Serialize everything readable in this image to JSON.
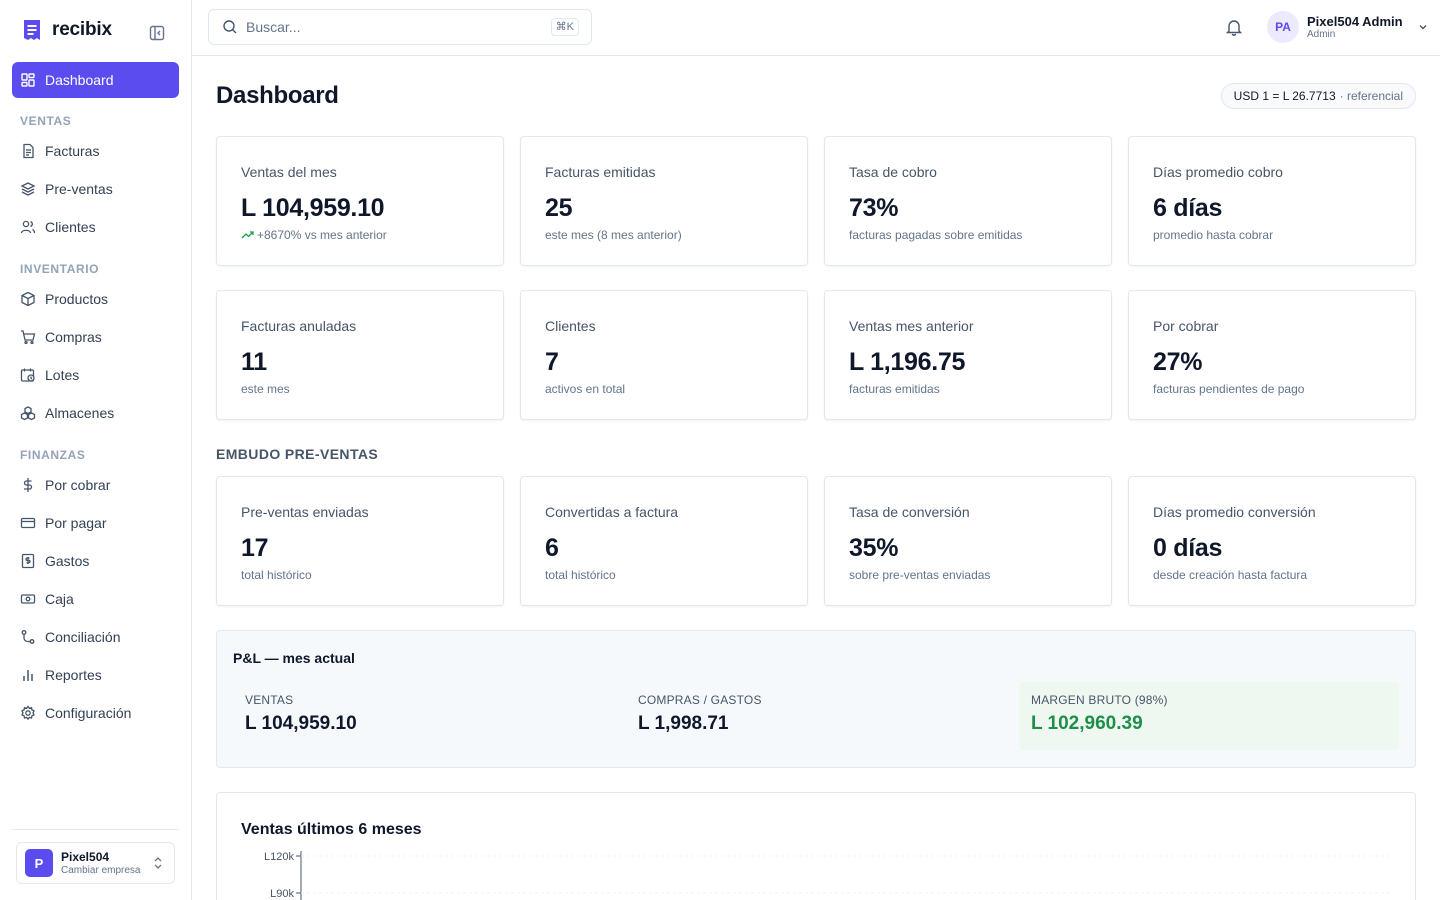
{
  "app": {
    "name": "recibix"
  },
  "sidebar": {
    "dashboard": "Dashboard",
    "sections": {
      "ventas": "VENTAS",
      "inventario": "INVENTARIO",
      "finanzas": "FINANZAS"
    },
    "items": {
      "facturas": "Facturas",
      "preventas": "Pre-ventas",
      "clientes": "Clientes",
      "productos": "Productos",
      "compras": "Compras",
      "lotes": "Lotes",
      "almacenes": "Almacenes",
      "porcobrar": "Por cobrar",
      "porpagar": "Por pagar",
      "gastos": "Gastos",
      "caja": "Caja",
      "conciliacion": "Conciliación",
      "reportes": "Reportes",
      "configuracion": "Configuración"
    },
    "company": {
      "initial": "P",
      "name": "Pixel504",
      "sub": "Cambiar empresa"
    }
  },
  "topbar": {
    "search_placeholder": "Buscar...",
    "shortcut": "⌘K",
    "user": {
      "initials": "PA",
      "name": "Pixel504 Admin",
      "role": "Admin"
    }
  },
  "page": {
    "title": "Dashboard",
    "rate": {
      "value": "USD 1 = L 26.7713",
      "note": "· referencial"
    }
  },
  "kpis_row1": [
    {
      "label": "Ventas del mes",
      "value": "L 104,959.10",
      "sub": "+8670% vs mes anterior"
    },
    {
      "label": "Facturas emitidas",
      "value": "25",
      "sub": "este mes (8 mes anterior)"
    },
    {
      "label": "Tasa de cobro",
      "value": "73%",
      "sub": "facturas pagadas sobre emitidas"
    },
    {
      "label": "Días promedio cobro",
      "value": "6 días",
      "sub": "promedio hasta cobrar"
    }
  ],
  "kpis_row2": [
    {
      "label": "Facturas anuladas",
      "value": "11",
      "sub": "este mes"
    },
    {
      "label": "Clientes",
      "value": "7",
      "sub": "activos en total"
    },
    {
      "label": "Ventas mes anterior",
      "value": "L 1,196.75",
      "sub": "facturas emitidas"
    },
    {
      "label": "Por cobrar",
      "value": "27%",
      "sub": "facturas pendientes de pago"
    }
  ],
  "funnel": {
    "heading": "EMBUDO PRE-VENTAS",
    "cards": [
      {
        "label": "Pre-ventas enviadas",
        "value": "17",
        "sub": "total histórico"
      },
      {
        "label": "Convertidas a factura",
        "value": "6",
        "sub": "total histórico"
      },
      {
        "label": "Tasa de conversión",
        "value": "35%",
        "sub": "sobre pre-ventas enviadas"
      },
      {
        "label": "Días promedio conversión",
        "value": "0 días",
        "sub": "desde creación hasta factura"
      }
    ]
  },
  "pl": {
    "title": "P&L — mes actual",
    "ventas": {
      "label": "VENTAS",
      "value": "L 104,959.10"
    },
    "compras": {
      "label": "COMPRAS / GASTOS",
      "value": "L 1,998.71"
    },
    "margen": {
      "label": "MARGEN BRUTO (98%)",
      "value": "L 102,960.39"
    }
  },
  "chart": {
    "title": "Ventas últimos 6 meses"
  },
  "chart_data": {
    "type": "bar",
    "title": "Ventas últimos 6 meses",
    "y_tick_labels": [
      "L120k",
      "L90k"
    ],
    "ylim": [
      0,
      120000
    ],
    "grid": true
  },
  "colors": {
    "accent": "#5b4cf0",
    "positive": "#1e8e4a",
    "border": "#e2e8f0"
  }
}
